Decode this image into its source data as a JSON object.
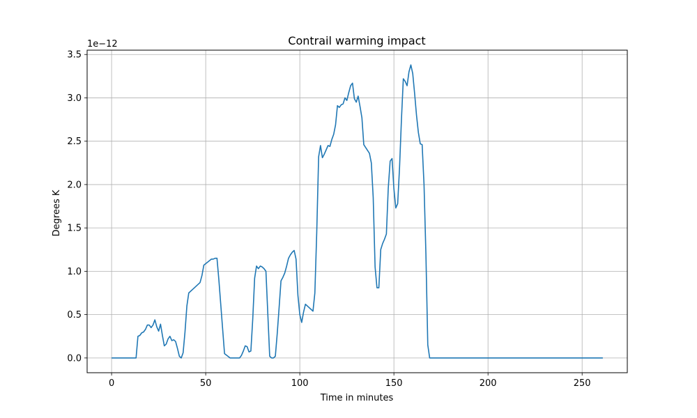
{
  "chart_data": {
    "type": "line",
    "title": "Contrail warming impact",
    "xlabel": "Time in minutes",
    "ylabel": "Degrees K",
    "y_offset_label": "1e−12",
    "xlim": [
      -13,
      274
    ],
    "ylim": [
      -0.17,
      3.55
    ],
    "x_ticks": [
      0,
      50,
      100,
      150,
      200,
      250
    ],
    "x_tick_labels": [
      "0",
      "50",
      "100",
      "150",
      "200",
      "250"
    ],
    "y_ticks": [
      0,
      0.5,
      1.0,
      1.5,
      2.0,
      2.5,
      3.0,
      3.5
    ],
    "y_tick_labels": [
      "0.0",
      "0.5",
      "1.0",
      "1.5",
      "2.0",
      "2.5",
      "3.0",
      "3.5"
    ],
    "grid": true,
    "line_color": "#1f77b4",
    "series": [
      {
        "x": [
          0,
          13,
          14,
          15,
          16,
          17,
          18,
          19,
          20,
          21,
          22,
          23,
          24,
          25,
          26,
          27,
          28,
          29,
          30,
          31,
          32,
          33,
          34,
          35,
          36,
          37,
          38,
          39,
          40,
          41,
          44,
          47,
          48,
          49,
          53,
          54,
          55,
          56,
          57,
          60,
          63,
          67,
          68,
          69,
          70,
          71,
          72,
          73,
          74,
          75,
          76,
          77,
          78,
          79,
          80,
          81,
          82,
          84,
          85,
          86,
          87,
          88,
          89,
          90,
          91,
          92,
          93,
          94,
          95,
          96,
          97,
          98,
          99,
          100,
          101,
          102,
          103,
          107,
          108,
          109,
          110,
          111,
          112,
          113,
          114,
          115,
          116,
          117,
          118,
          119,
          120,
          121,
          122,
          123,
          124,
          125,
          126,
          127,
          128,
          129,
          130,
          131,
          132,
          133,
          134,
          137,
          138,
          139,
          140,
          141,
          142,
          143,
          144,
          145,
          146,
          147,
          148,
          149,
          150,
          151,
          152,
          153,
          154,
          155,
          156,
          157,
          158,
          159,
          160,
          161,
          162,
          163,
          164,
          165,
          166,
          167,
          168,
          169,
          261
        ],
        "y": [
          0,
          0,
          0.25,
          0.26,
          0.29,
          0.3,
          0.33,
          0.38,
          0.38,
          0.35,
          0.38,
          0.44,
          0.36,
          0.31,
          0.39,
          0.26,
          0.14,
          0.16,
          0.22,
          0.25,
          0.2,
          0.21,
          0.19,
          0.11,
          0.02,
          0.0,
          0.06,
          0.3,
          0.6,
          0.75,
          0.81,
          0.87,
          0.95,
          1.07,
          1.14,
          1.14,
          1.15,
          1.15,
          0.9,
          0.05,
          0,
          0,
          0,
          0.03,
          0.08,
          0.14,
          0.13,
          0.07,
          0.08,
          0.45,
          0.92,
          1.06,
          1.03,
          1.06,
          1.05,
          1.03,
          1.0,
          0.02,
          0.0,
          0.0,
          0.02,
          0.28,
          0.58,
          0.89,
          0.93,
          0.98,
          1.06,
          1.15,
          1.19,
          1.22,
          1.24,
          1.14,
          0.72,
          0.5,
          0.41,
          0.53,
          0.62,
          0.54,
          0.75,
          1.45,
          2.32,
          2.45,
          2.31,
          2.35,
          2.4,
          2.45,
          2.44,
          2.52,
          2.58,
          2.69,
          2.91,
          2.89,
          2.92,
          2.93,
          3.0,
          2.97,
          3.06,
          3.14,
          3.17,
          2.99,
          2.95,
          3.02,
          2.9,
          2.77,
          2.46,
          2.36,
          2.25,
          1.85,
          1.05,
          0.81,
          0.81,
          1.25,
          1.32,
          1.37,
          1.43,
          1.96,
          2.27,
          2.3,
          1.95,
          1.73,
          1.78,
          2.2,
          2.75,
          3.22,
          3.19,
          3.14,
          3.3,
          3.38,
          3.28,
          3.05,
          2.8,
          2.6,
          2.47,
          2.46,
          2.0,
          1.2,
          0.15,
          0.0,
          0.0
        ]
      }
    ]
  }
}
